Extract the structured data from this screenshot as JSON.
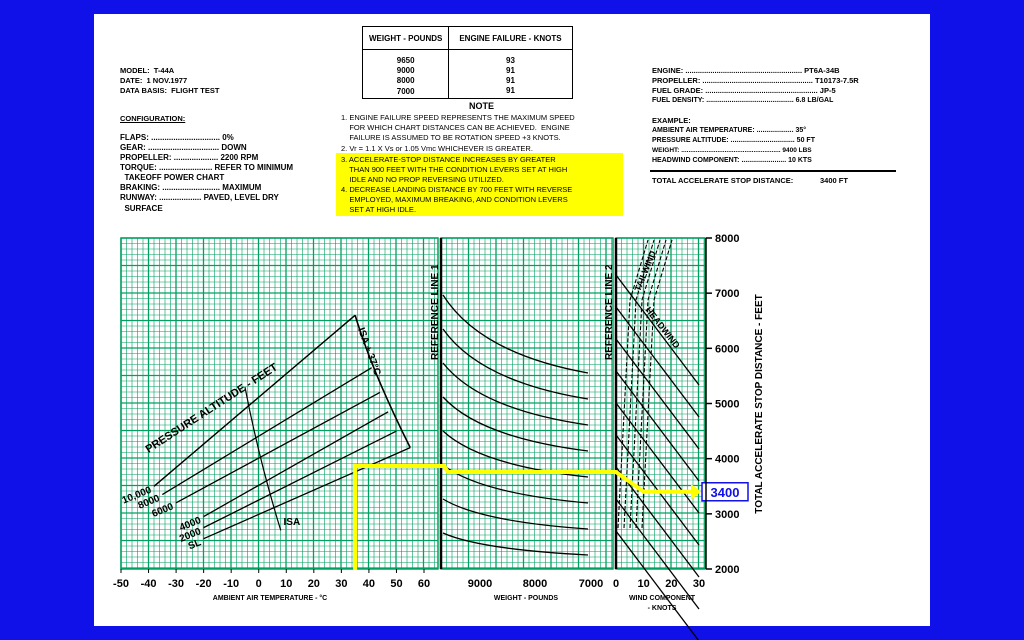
{
  "header_left": {
    "model": "MODEL:  T-44A",
    "date": "DATE:  1 NOV.1977",
    "data_basis": "DATA BASIS:  FLIGHT TEST",
    "config_title": "CONFIGURATION:",
    "flaps": "FLAPS: ............................... 0%",
    "gear": "GEAR: ................................ DOWN",
    "propeller": "PROPELLER: .................... 2200 RPM",
    "torque": "TORQUE: ........................ REFER TO MINIMUM",
    "torque2": "  TAKEOFF POWER CHART",
    "braking": "BRAKING: .......................... MAXIMUM",
    "runway": "RUNWAY: ................... PAVED, LEVEL DRY",
    "runway2": "  SURFACE"
  },
  "weight_table": {
    "headers": [
      "WEIGHT - POUNDS",
      "ENGINE FAILURE - KNOTS"
    ],
    "rows": [
      [
        "9650",
        "93"
      ],
      [
        "9000",
        "91"
      ],
      [
        "8000",
        "91"
      ],
      [
        "7000",
        "91"
      ]
    ]
  },
  "note": {
    "title": "NOTE",
    "lines": [
      "1. ENGINE FAILURE SPEED REPRESENTS THE MAXIMUM SPEED",
      "    FOR WHICH CHART DISTANCES CAN BE ACHIEVED.  ENGINE",
      "    FAILURE IS ASSUMED TO BE ROTATION SPEED +3 KNOTS.",
      "2. Vr = 1.1 X Vs or 1.05 Vmc WHICHEVER IS GREATER.",
      "3. ACCELERATE-STOP DISTANCE INCREASES BY GREATER",
      "    THAN 900 FEET WITH THE CONDITION LEVERS SET AT HIGH",
      "    IDLE AND NO PROP REVERSING UTILIZED.",
      "4. DECREASE LANDING DISTANCE BY 700 FEET WITH REVERSE",
      "    EMPLOYED, MAXIMUM BREAKING, AND CONDITION LEVERS",
      "    SET AT HIGH IDLE."
    ]
  },
  "header_right": {
    "engine": "ENGINE: ........................................................ PT6A-34B",
    "propeller": "PROPELLER: ..................................................... T10173-7.5R",
    "fuel_grade": "FUEL GRADE: ...................................................... JP-5",
    "fuel_density": "FUEL DENSITY: ............................................. 6.8 LB/GAL",
    "example_title": "EXAMPLE:",
    "amb_temp": "AMBIENT AIR TEMPERATURE: ................... 35°",
    "pressure_alt": "PRESSURE ALTITUDE: ................................. 50 FT",
    "weight": "WEIGHT: ....................................................... 9400 LBS",
    "headwind": "HEADWIND COMPONENT: ....................... 10 KTS",
    "total_label": "TOTAL ACCELERATE STOP DISTANCE:",
    "total_value": "3400 FT"
  },
  "chart_data": {
    "type": "line",
    "title": "",
    "result_label": "3400",
    "panels": {
      "temperature": {
        "xlabel": "AMBIENT AIR TEMPERATURE - °C",
        "xticks": [
          "-50",
          "-40",
          "-30",
          "-20",
          "-10",
          "0",
          "10",
          "20",
          "30",
          "40",
          "50",
          "60"
        ],
        "xlim": [
          -50,
          60
        ],
        "curve_group_label": "PRESSURE ALTITUDE - FEET",
        "isa_label": "ISA",
        "isa_plus_label": "ISA + 37°C",
        "series": [
          {
            "name": "SL",
            "x": [
              -20,
              55
            ],
            "y": [
              2550,
              4200
            ]
          },
          {
            "name": "2000",
            "x": [
              -20,
              50
            ],
            "y": [
              2750,
              4500
            ]
          },
          {
            "name": "4000",
            "x": [
              -20,
              47
            ],
            "y": [
              2950,
              4850
            ]
          },
          {
            "name": "6000",
            "x": [
              -30,
              44
            ],
            "y": [
              3200,
              5200
            ]
          },
          {
            "name": "8000",
            "x": [
              -35,
              41
            ],
            "y": [
              3350,
              5650
            ]
          },
          {
            "name": "10,000",
            "x": [
              -38,
              35
            ],
            "y": [
              3500,
              6600
            ]
          }
        ]
      },
      "weight": {
        "xlabel": "WEIGHT - POUNDS",
        "xticks": [
          "9000",
          "8000",
          "7000"
        ],
        "reference_label": "REFERENCE LINE 1",
        "guide_lines": 8
      },
      "wind": {
        "xlabel": "WIND COMPONENT\n - KNOTS",
        "xticks": [
          "0",
          "10",
          "20",
          "30"
        ],
        "xlim": [
          0,
          30
        ],
        "reference_label": "REFERENCE LINE 2",
        "tailwind_label": "TAILWIND",
        "headwind_label": "HEADWIND",
        "guide_lines": 9
      }
    },
    "yaxis": {
      "ylabel": "TOTAL ACCELERATE STOP DISTANCE - FEET",
      "ylim": [
        2000,
        8000
      ],
      "yticks": [
        "2000",
        "3000",
        "4000",
        "5000",
        "6000",
        "7000",
        "8000"
      ]
    },
    "example_path": {
      "temperature_c": 35,
      "distance_ft": 3400
    },
    "colors": {
      "grid": "#00a060",
      "example": "#ffff00",
      "result": "#1010e8"
    }
  }
}
